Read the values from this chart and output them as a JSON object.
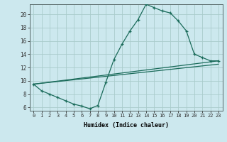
{
  "xlabel": "Humidex (Indice chaleur)",
  "bg_color": "#cce8ee",
  "grid_color": "#aacccc",
  "line_color": "#1a6b5a",
  "xlim": [
    -0.5,
    23.5
  ],
  "ylim": [
    5.5,
    21.5
  ],
  "xticks": [
    0,
    1,
    2,
    3,
    4,
    5,
    6,
    7,
    8,
    9,
    10,
    11,
    12,
    13,
    14,
    15,
    16,
    17,
    18,
    19,
    20,
    21,
    22,
    23
  ],
  "yticks": [
    6,
    8,
    10,
    12,
    14,
    16,
    18,
    20
  ],
  "series1_x": [
    0,
    1,
    2,
    3,
    4,
    5,
    6,
    7,
    8,
    9,
    10,
    11,
    12,
    13,
    14,
    15,
    16,
    17,
    18,
    19,
    20,
    21,
    22,
    23
  ],
  "series1_y": [
    9.5,
    8.5,
    8.0,
    7.5,
    7.0,
    6.5,
    6.2,
    5.8,
    6.3,
    9.8,
    13.2,
    15.5,
    17.5,
    19.2,
    21.5,
    21.0,
    20.5,
    20.2,
    19.0,
    17.5,
    14.0,
    13.5,
    13.0,
    13.0
  ],
  "line1_x": [
    0,
    23
  ],
  "line1_y": [
    9.5,
    13.0
  ],
  "line2_x": [
    0,
    23
  ],
  "line2_y": [
    9.5,
    12.5
  ]
}
